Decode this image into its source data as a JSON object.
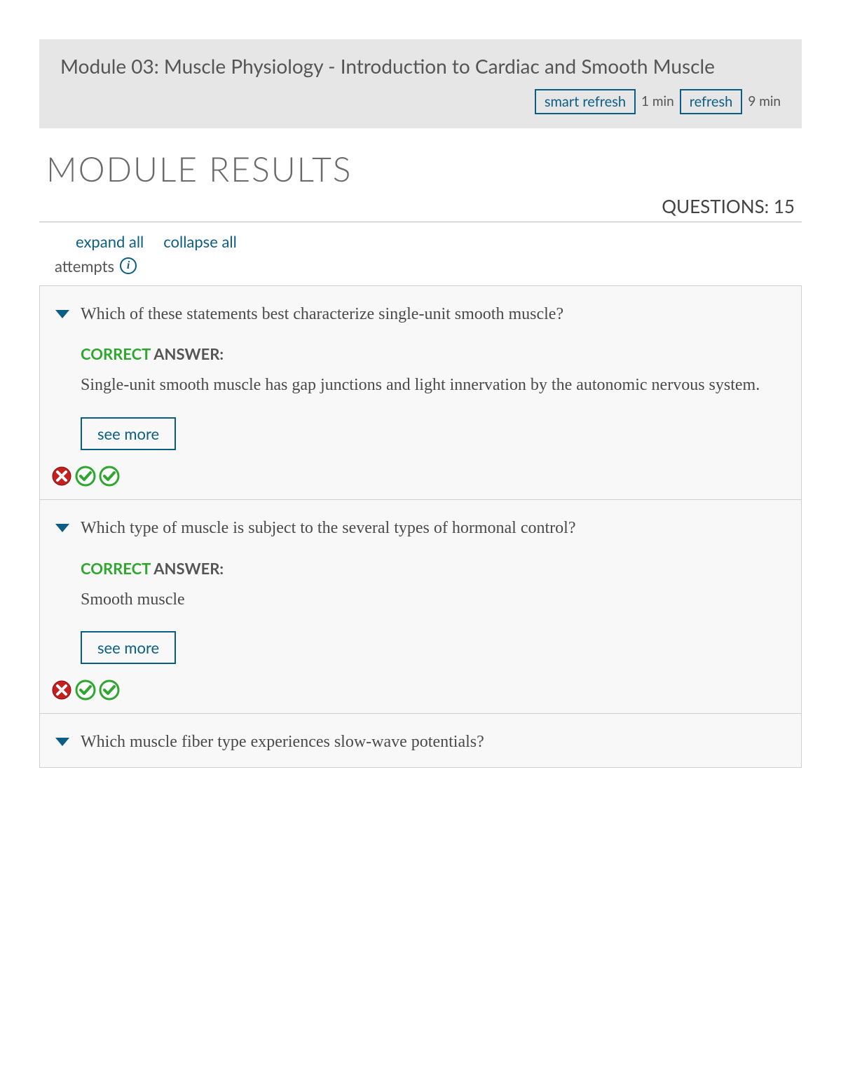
{
  "colors": {
    "primary": "#0b5e83",
    "header_bg": "#e6e6e6",
    "card_bg": "#f8f8f8",
    "border": "#cfcfcf",
    "text": "#4a4a4a",
    "correct_green": "#2fa62f",
    "wrong_red": "#c52020"
  },
  "module": {
    "title": "Module 03: Muscle Physiology - Introduction to Cardiac and Smooth Muscle",
    "refresh": {
      "smart_label": "smart refresh",
      "smart_time": "1 min",
      "full_label": "refresh",
      "full_time": "9 min"
    }
  },
  "results": {
    "heading": "MODULE RESULTS",
    "questions_label": "QUESTIONS: 15",
    "expand_all": "expand all",
    "collapse_all": "collapse all",
    "attempts_label": "attempts",
    "correct_word": "CORRECT",
    "answer_word": " ANSWER:",
    "see_more": "see more"
  },
  "questions": [
    {
      "text": "Which of these statements best characterize single-unit smooth muscle?",
      "answer": "Single-unit smooth muscle has gap junctions and light innervation by the autonomic nervous system.",
      "attempts": [
        "wrong",
        "correct",
        "correct"
      ],
      "expanded": true
    },
    {
      "text": "Which type of muscle is subject to the several types of hormonal control?",
      "answer": "Smooth muscle",
      "attempts": [
        "wrong",
        "correct",
        "correct"
      ],
      "expanded": true
    },
    {
      "text": "Which muscle fiber type experiences slow-wave potentials?",
      "answer": "",
      "attempts": [],
      "expanded": false
    }
  ]
}
